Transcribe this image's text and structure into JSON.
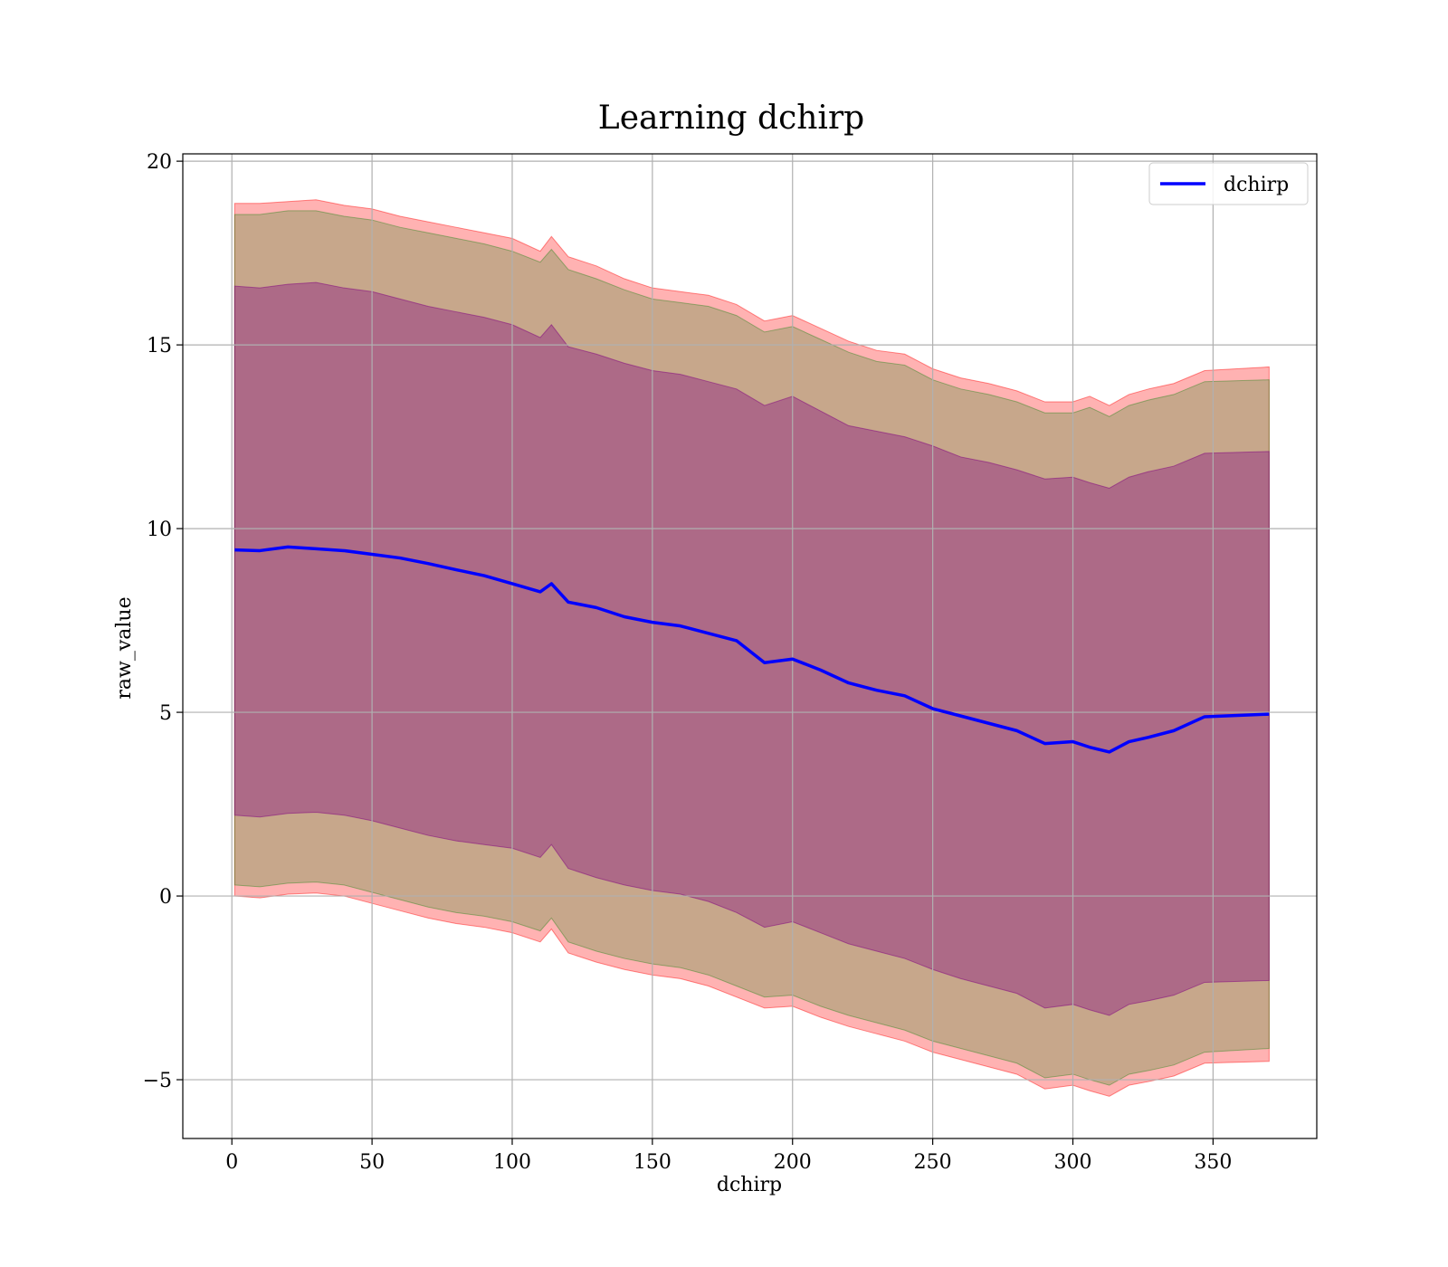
{
  "chart_data": {
    "type": "line",
    "title": "Learning dchirp",
    "xlabel": "dchirp",
    "ylabel": "raw_value",
    "xlim": [
      -17.5,
      387
    ],
    "ylim": [
      -6.6,
      20.2
    ],
    "xticks": [
      0,
      50,
      100,
      150,
      200,
      250,
      300,
      350
    ],
    "yticks": [
      -5,
      0,
      5,
      10,
      15,
      20
    ],
    "xtick_labels": [
      "0",
      "50",
      "100",
      "150",
      "200",
      "250",
      "300",
      "350"
    ],
    "ytick_labels": [
      "−5",
      "0",
      "5",
      "10",
      "15",
      "20"
    ],
    "grid": true,
    "legend_position": "top-right",
    "series": [
      {
        "name": "dchirp",
        "color": "#0000ff",
        "x": [
          1,
          10,
          20,
          30,
          40,
          50,
          60,
          70,
          80,
          90,
          100,
          110,
          114,
          120,
          130,
          140,
          150,
          160,
          170,
          180,
          190,
          200,
          210,
          220,
          230,
          240,
          250,
          260,
          270,
          280,
          290,
          300,
          306,
          313,
          320,
          327,
          336,
          347,
          370
        ],
        "mean": [
          9.42,
          9.4,
          9.5,
          9.45,
          9.4,
          9.3,
          9.2,
          9.05,
          8.88,
          8.72,
          8.5,
          8.28,
          8.5,
          8.0,
          7.85,
          7.6,
          7.45,
          7.35,
          7.15,
          6.95,
          6.35,
          6.45,
          6.15,
          5.8,
          5.6,
          5.45,
          5.1,
          4.9,
          4.7,
          4.5,
          4.15,
          4.2,
          4.05,
          3.92,
          4.2,
          4.32,
          4.5,
          4.88,
          4.95
        ]
      }
    ],
    "bands": [
      {
        "name": "outer",
        "color": "#ff0000",
        "opacity": 0.3,
        "upper": [
          18.85,
          18.85,
          18.9,
          18.95,
          18.8,
          18.7,
          18.5,
          18.35,
          18.2,
          18.05,
          17.9,
          17.55,
          17.95,
          17.4,
          17.15,
          16.8,
          16.55,
          16.45,
          16.35,
          16.1,
          15.65,
          15.8,
          15.45,
          15.1,
          14.85,
          14.75,
          14.35,
          14.1,
          13.95,
          13.75,
          13.45,
          13.45,
          13.6,
          13.35,
          13.65,
          13.8,
          13.95,
          14.3,
          14.4
        ],
        "lower": [
          0.0,
          -0.05,
          0.05,
          0.08,
          0.0,
          -0.2,
          -0.4,
          -0.6,
          -0.75,
          -0.85,
          -1.0,
          -1.25,
          -0.9,
          -1.55,
          -1.8,
          -2.0,
          -2.15,
          -2.25,
          -2.45,
          -2.75,
          -3.05,
          -3.0,
          -3.3,
          -3.55,
          -3.75,
          -3.95,
          -4.25,
          -4.45,
          -4.65,
          -4.85,
          -5.25,
          -5.15,
          -5.3,
          -5.45,
          -5.15,
          -5.05,
          -4.9,
          -4.55,
          -4.5
        ]
      },
      {
        "name": "middle",
        "color": "#008000",
        "opacity": 0.22,
        "upper": [
          18.55,
          18.55,
          18.65,
          18.65,
          18.5,
          18.4,
          18.2,
          18.05,
          17.9,
          17.75,
          17.55,
          17.25,
          17.6,
          17.05,
          16.8,
          16.5,
          16.25,
          16.15,
          16.05,
          15.8,
          15.35,
          15.5,
          15.15,
          14.8,
          14.55,
          14.45,
          14.05,
          13.8,
          13.65,
          13.45,
          13.15,
          13.15,
          13.3,
          13.05,
          13.35,
          13.5,
          13.65,
          14.0,
          14.05
        ],
        "lower": [
          0.3,
          0.25,
          0.35,
          0.38,
          0.3,
          0.1,
          -0.1,
          -0.3,
          -0.45,
          -0.55,
          -0.7,
          -0.95,
          -0.6,
          -1.25,
          -1.5,
          -1.7,
          -1.85,
          -1.95,
          -2.15,
          -2.45,
          -2.75,
          -2.7,
          -3.0,
          -3.25,
          -3.45,
          -3.65,
          -3.95,
          -4.15,
          -4.35,
          -4.55,
          -4.95,
          -4.85,
          -5.0,
          -5.15,
          -4.85,
          -4.75,
          -4.6,
          -4.25,
          -4.15
        ]
      },
      {
        "name": "inner",
        "color": "#800080",
        "opacity": 0.36,
        "upper": [
          16.6,
          16.55,
          16.65,
          16.7,
          16.55,
          16.45,
          16.25,
          16.05,
          15.9,
          15.75,
          15.55,
          15.2,
          15.55,
          14.95,
          14.75,
          14.5,
          14.3,
          14.2,
          14.0,
          13.8,
          13.35,
          13.6,
          13.2,
          12.8,
          12.65,
          12.5,
          12.25,
          11.95,
          11.8,
          11.6,
          11.35,
          11.4,
          11.25,
          11.1,
          11.4,
          11.55,
          11.7,
          12.05,
          12.1
        ],
        "lower": [
          2.2,
          2.15,
          2.25,
          2.28,
          2.2,
          2.05,
          1.85,
          1.65,
          1.5,
          1.4,
          1.3,
          1.05,
          1.4,
          0.75,
          0.5,
          0.3,
          0.15,
          0.05,
          -0.15,
          -0.45,
          -0.85,
          -0.7,
          -1.0,
          -1.3,
          -1.5,
          -1.7,
          -2.0,
          -2.25,
          -2.45,
          -2.65,
          -3.05,
          -2.95,
          -3.1,
          -3.25,
          -2.95,
          -2.85,
          -2.7,
          -2.35,
          -2.3
        ]
      }
    ]
  }
}
